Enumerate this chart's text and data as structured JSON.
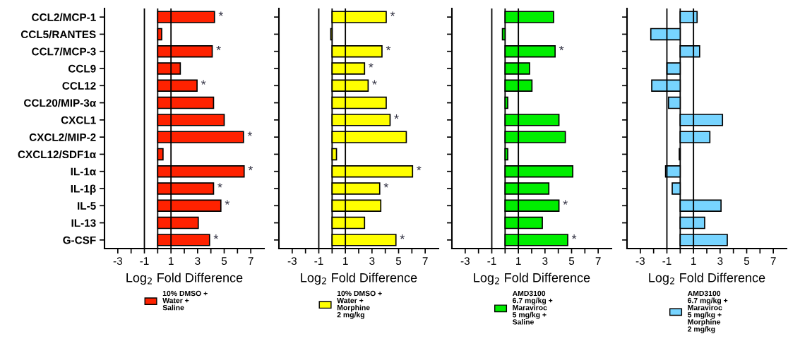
{
  "chart_data": [
    {
      "type": "bar",
      "orientation": "horizontal",
      "categories": [
        "CCL2/MCP-1",
        "CCL5/RANTES",
        "CCL7/MCP-3",
        "CCL9",
        "CCL12",
        "CCL20/MIP-3α",
        "CXCL1",
        "CXCL2/MIP-2",
        "CXCL12/SDF1α",
        "IL-1α",
        "IL-1β",
        "IL-5",
        "IL-13",
        "G-CSF"
      ],
      "xlabel": "Log$_{2}$ Fold Difference",
      "xlim": [
        -4,
        8
      ],
      "xticks": [
        -3,
        {
          "value": -2,
          "label": null
        },
        -1,
        {
          "value": 0,
          "label": null
        },
        1,
        {
          "value": 2,
          "label": null
        },
        3,
        {
          "value": 4,
          "label": null
        },
        5,
        {
          "value": 6,
          "label": null
        },
        7
      ],
      "legend": "bottom",
      "series": [
        {
          "name": "10% DMSO +\nWater +\nSaline",
          "color": "#ff2200",
          "values": [
            4.27,
            0.3,
            4.1,
            1.7,
            2.96,
            4.2,
            5.0,
            6.45,
            0.4,
            6.5,
            4.2,
            4.75,
            3.05,
            3.9
          ]
        }
      ],
      "ref_lines": [
        {
          "axis": "x",
          "value": -1,
          "label": null
        },
        {
          "axis": "x",
          "value": 0,
          "label": null
        },
        {
          "axis": "x",
          "value": 1,
          "label": null
        }
      ],
      "annotations": [
        {
          "text": "*",
          "x": 4.27,
          "y": "CCL2/MCP-1"
        },
        {
          "text": "*",
          "x": 4.1,
          "y": "CCL7/MCP-3"
        },
        {
          "text": "*",
          "x": 2.96,
          "y": "CCL12"
        },
        {
          "text": "*",
          "x": 6.45,
          "y": "CXCL2/MIP-2"
        },
        {
          "text": "*",
          "x": 6.5,
          "y": "IL-1α"
        },
        {
          "text": "*",
          "x": 4.2,
          "y": "IL-1β"
        },
        {
          "text": "*",
          "x": 4.75,
          "y": "IL-5"
        },
        {
          "text": "*",
          "x": 3.9,
          "y": "G-CSF"
        }
      ]
    },
    {
      "type": "bar",
      "orientation": "horizontal",
      "tick_labels": "x",
      "categories": [
        "CCL2/MCP-1",
        "CCL5/RANTES",
        "CCL7/MCP-3",
        "CCL9",
        "CCL12",
        "CCL20/MIP-3α",
        "CXCL1",
        "CXCL2/MIP-2",
        "CXCL12/SDF1α",
        "IL-1α",
        "IL-1β",
        "IL-5",
        "IL-13",
        "G-CSF"
      ],
      "xlabel": "Log$_{2}$ Fold Difference",
      "xlim": [
        -4,
        8
      ],
      "xticks": [
        -3,
        {
          "value": -2,
          "label": null
        },
        -1,
        {
          "value": 0,
          "label": null
        },
        1,
        {
          "value": 2,
          "label": null
        },
        3,
        {
          "value": 4,
          "label": null
        },
        5,
        {
          "value": 6,
          "label": null
        },
        7
      ],
      "legend": "bottom",
      "series": [
        {
          "name": "10% DMSO +\nWater +\nMorphine\n2 mg/kg",
          "color": "#ffff00",
          "values": [
            4.07,
            -0.1,
            3.75,
            2.44,
            2.71,
            4.07,
            4.36,
            5.58,
            0.33,
            6.05,
            3.58,
            3.66,
            2.44,
            4.8
          ]
        }
      ],
      "ref_lines": [
        {
          "axis": "x",
          "value": -1,
          "label": null
        },
        {
          "axis": "x",
          "value": 0,
          "label": null
        },
        {
          "axis": "x",
          "value": 1,
          "label": null
        }
      ],
      "annotations": [
        {
          "text": "*",
          "x": 4.07,
          "y": "CCL2/MCP-1"
        },
        {
          "text": "*",
          "x": 3.75,
          "y": "CCL7/MCP-3"
        },
        {
          "text": "*",
          "x": 2.44,
          "y": "CCL9"
        },
        {
          "text": "*",
          "x": 2.71,
          "y": "CCL12"
        },
        {
          "text": "*",
          "x": 4.36,
          "y": "CXCL1"
        },
        {
          "text": "*",
          "x": 6.05,
          "y": "IL-1α"
        },
        {
          "text": "*",
          "x": 3.58,
          "y": "IL-1β"
        },
        {
          "text": "*",
          "x": 4.8,
          "y": "G-CSF"
        }
      ]
    },
    {
      "type": "bar",
      "orientation": "horizontal",
      "tick_labels": "x",
      "categories": [
        "CCL2/MCP-1",
        "CCL5/RANTES",
        "CCL7/MCP-3",
        "CCL9",
        "CCL12",
        "CCL20/MIP-3α",
        "CXCL1",
        "CXCL2/MIP-2",
        "CXCL12/SDF1α",
        "IL-1α",
        "IL-1β",
        "IL-5",
        "IL-13",
        "G-CSF"
      ],
      "xlabel": "Log$_{2}$ Fold Difference",
      "xlim": [
        -4,
        8
      ],
      "xticks": [
        -3,
        {
          "value": -2,
          "label": null
        },
        -1,
        {
          "value": 0,
          "label": null
        },
        1,
        {
          "value": 2,
          "label": null
        },
        3,
        {
          "value": 4,
          "label": null
        },
        5,
        {
          "value": 6,
          "label": null
        },
        7
      ],
      "legend": "bottom",
      "series": [
        {
          "name": "AMD3100\n6.7 mg/kg +\nMaraviroc\n5 mg/kg +\nSaline",
          "color": "#00ee00",
          "values": [
            3.65,
            -0.2,
            3.76,
            1.84,
            2.02,
            0.2,
            4.05,
            4.53,
            0.2,
            5.09,
            3.29,
            4.05,
            2.8,
            4.71
          ]
        }
      ],
      "ref_lines": [
        {
          "axis": "x",
          "value": -1,
          "label": null
        },
        {
          "axis": "x",
          "value": 0,
          "label": null
        },
        {
          "axis": "x",
          "value": 1,
          "label": null
        }
      ],
      "annotations": [
        {
          "text": "*",
          "x": 3.76,
          "y": "CCL7/MCP-3"
        },
        {
          "text": "*",
          "x": 4.05,
          "y": "IL-5"
        },
        {
          "text": "*",
          "x": 4.71,
          "y": "G-CSF"
        }
      ]
    },
    {
      "type": "bar",
      "orientation": "horizontal",
      "tick_labels": "x",
      "categories": [
        "CCL2/MCP-1",
        "CCL5/RANTES",
        "CCL7/MCP-3",
        "CCL9",
        "CCL12",
        "CCL20/MIP-3α",
        "CXCL1",
        "CXCL2/MIP-2",
        "CXCL12/SDF1α",
        "IL-1α",
        "IL-1β",
        "IL-5",
        "IL-13",
        "G-CSF"
      ],
      "xlabel": "Log$_{2}$ Fold Difference",
      "xlim": [
        -4,
        8
      ],
      "xticks": [
        -3,
        {
          "value": -2,
          "label": null
        },
        -1,
        {
          "value": 0,
          "label": null
        },
        1,
        {
          "value": 2,
          "label": null
        },
        3,
        {
          "value": 4,
          "label": null
        },
        5,
        {
          "value": 6,
          "label": null
        },
        7
      ],
      "legend": "bottom",
      "series": [
        {
          "name": "AMD3100\n6.7 mg/kg +\nMaraviroc\n5 mg/kg +\nMorphine\n2 mg/kg",
          "color": "#77d4ff",
          "values": [
            1.27,
            -2.21,
            1.46,
            -1.0,
            -2.14,
            -0.88,
            3.18,
            2.23,
            -0.07,
            -1.1,
            -0.6,
            3.07,
            1.84,
            3.54
          ]
        }
      ],
      "ref_lines": [
        {
          "axis": "x",
          "value": -1,
          "label": null
        },
        {
          "axis": "x",
          "value": 0,
          "label": null
        },
        {
          "axis": "x",
          "value": 1,
          "label": null
        }
      ]
    }
  ]
}
